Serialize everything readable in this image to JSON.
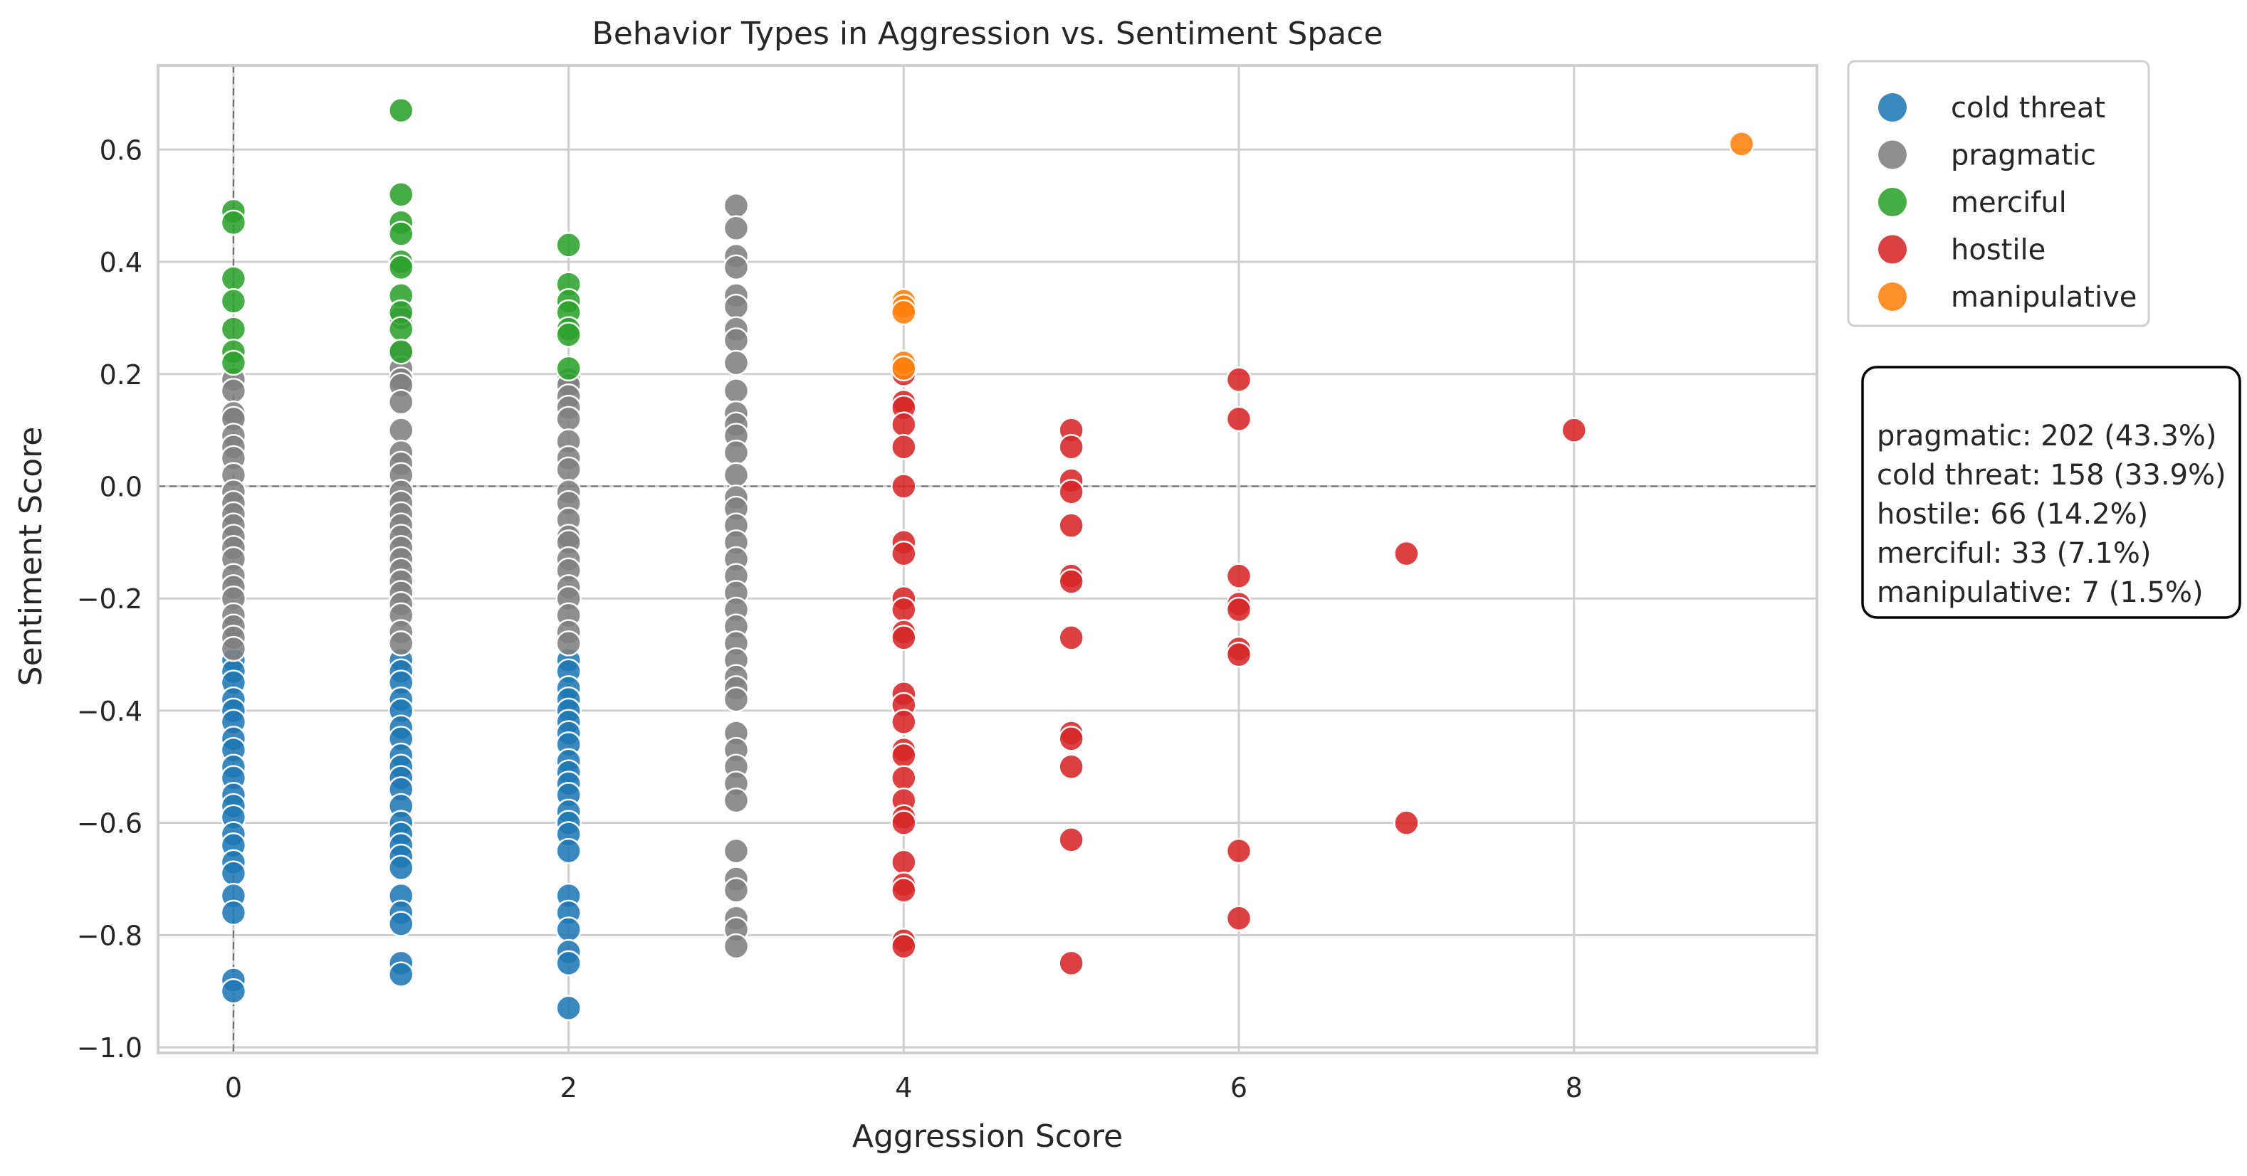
{
  "chart_data": {
    "type": "scatter",
    "title": "Behavior Types in Aggression vs. Sentiment Space",
    "xlabel": "Aggression Score",
    "ylabel": "Sentiment Score",
    "xlim": [
      -0.45,
      9.45
    ],
    "ylim": [
      -1.01,
      0.75
    ],
    "xticks": [
      0,
      2,
      4,
      6,
      8
    ],
    "yticks": [
      -1.0,
      -0.8,
      -0.6,
      -0.4,
      -0.2,
      0.0,
      0.2,
      0.4,
      0.6
    ],
    "ytick_labels": [
      "−1.0",
      "−0.8",
      "−0.6",
      "−0.4",
      "−0.2",
      "0.0",
      "0.2",
      "0.4",
      "0.6"
    ],
    "xtick_labels": [
      "0",
      "2",
      "4",
      "6",
      "8"
    ],
    "grid": true,
    "reference_lines": {
      "x": 0,
      "y": 0,
      "style": "dashed"
    },
    "legend_position": "outside-top-right",
    "series": [
      {
        "name": "cold threat",
        "color": "#1f77b4",
        "points": [
          [
            0,
            -0.31
          ],
          [
            0,
            -0.33
          ],
          [
            0,
            -0.35
          ],
          [
            0,
            -0.38
          ],
          [
            0,
            -0.4
          ],
          [
            0,
            -0.42
          ],
          [
            0,
            -0.45
          ],
          [
            0,
            -0.47
          ],
          [
            0,
            -0.5
          ],
          [
            0,
            -0.52
          ],
          [
            0,
            -0.55
          ],
          [
            0,
            -0.57
          ],
          [
            0,
            -0.59
          ],
          [
            0,
            -0.62
          ],
          [
            0,
            -0.64
          ],
          [
            0,
            -0.67
          ],
          [
            0,
            -0.69
          ],
          [
            0,
            -0.73
          ],
          [
            0,
            -0.76
          ],
          [
            0,
            -0.88
          ],
          [
            0,
            -0.9
          ],
          [
            1,
            -0.31
          ],
          [
            1,
            -0.33
          ],
          [
            1,
            -0.35
          ],
          [
            1,
            -0.38
          ],
          [
            1,
            -0.4
          ],
          [
            1,
            -0.43
          ],
          [
            1,
            -0.45
          ],
          [
            1,
            -0.48
          ],
          [
            1,
            -0.5
          ],
          [
            1,
            -0.52
          ],
          [
            1,
            -0.54
          ],
          [
            1,
            -0.57
          ],
          [
            1,
            -0.6
          ],
          [
            1,
            -0.62
          ],
          [
            1,
            -0.64
          ],
          [
            1,
            -0.66
          ],
          [
            1,
            -0.68
          ],
          [
            1,
            -0.73
          ],
          [
            1,
            -0.76
          ],
          [
            1,
            -0.78
          ],
          [
            1,
            -0.85
          ],
          [
            1,
            -0.87
          ],
          [
            2,
            -0.31
          ],
          [
            2,
            -0.33
          ],
          [
            2,
            -0.36
          ],
          [
            2,
            -0.38
          ],
          [
            2,
            -0.4
          ],
          [
            2,
            -0.42
          ],
          [
            2,
            -0.44
          ],
          [
            2,
            -0.46
          ],
          [
            2,
            -0.49
          ],
          [
            2,
            -0.51
          ],
          [
            2,
            -0.53
          ],
          [
            2,
            -0.55
          ],
          [
            2,
            -0.58
          ],
          [
            2,
            -0.6
          ],
          [
            2,
            -0.62
          ],
          [
            2,
            -0.65
          ],
          [
            2,
            -0.73
          ],
          [
            2,
            -0.76
          ],
          [
            2,
            -0.79
          ],
          [
            2,
            -0.83
          ],
          [
            2,
            -0.85
          ],
          [
            2,
            -0.93
          ]
        ]
      },
      {
        "name": "pragmatic",
        "color": "#7f7f7f",
        "points": [
          [
            0,
            0.19
          ],
          [
            0,
            0.17
          ],
          [
            0,
            0.13
          ],
          [
            0,
            0.12
          ],
          [
            0,
            0.09
          ],
          [
            0,
            0.07
          ],
          [
            0,
            0.05
          ],
          [
            0,
            0.02
          ],
          [
            0,
            -0.01
          ],
          [
            0,
            -0.03
          ],
          [
            0,
            -0.05
          ],
          [
            0,
            -0.07
          ],
          [
            0,
            -0.09
          ],
          [
            0,
            -0.11
          ],
          [
            0,
            -0.13
          ],
          [
            0,
            -0.16
          ],
          [
            0,
            -0.18
          ],
          [
            0,
            -0.2
          ],
          [
            0,
            -0.23
          ],
          [
            0,
            -0.25
          ],
          [
            0,
            -0.27
          ],
          [
            0,
            -0.29
          ],
          [
            1,
            0.3
          ],
          [
            1,
            0.24
          ],
          [
            1,
            0.21
          ],
          [
            1,
            0.19
          ],
          [
            1,
            0.18
          ],
          [
            1,
            0.15
          ],
          [
            1,
            0.1
          ],
          [
            1,
            0.06
          ],
          [
            1,
            0.04
          ],
          [
            1,
            0.02
          ],
          [
            1,
            -0.01
          ],
          [
            1,
            -0.03
          ],
          [
            1,
            -0.05
          ],
          [
            1,
            -0.07
          ],
          [
            1,
            -0.09
          ],
          [
            1,
            -0.11
          ],
          [
            1,
            -0.13
          ],
          [
            1,
            -0.15
          ],
          [
            1,
            -0.17
          ],
          [
            1,
            -0.19
          ],
          [
            1,
            -0.21
          ],
          [
            1,
            -0.23
          ],
          [
            1,
            -0.26
          ],
          [
            1,
            -0.28
          ],
          [
            2,
            0.19
          ],
          [
            2,
            0.18
          ],
          [
            2,
            0.16
          ],
          [
            2,
            0.14
          ],
          [
            2,
            0.12
          ],
          [
            2,
            0.08
          ],
          [
            2,
            0.05
          ],
          [
            2,
            0.03
          ],
          [
            2,
            -0.01
          ],
          [
            2,
            -0.03
          ],
          [
            2,
            -0.06
          ],
          [
            2,
            -0.09
          ],
          [
            2,
            -0.1
          ],
          [
            2,
            -0.13
          ],
          [
            2,
            -0.15
          ],
          [
            2,
            -0.18
          ],
          [
            2,
            -0.2
          ],
          [
            2,
            -0.23
          ],
          [
            2,
            -0.26
          ],
          [
            2,
            -0.28
          ],
          [
            3,
            0.5
          ],
          [
            3,
            0.46
          ],
          [
            3,
            0.41
          ],
          [
            3,
            0.39
          ],
          [
            3,
            0.34
          ],
          [
            3,
            0.32
          ],
          [
            3,
            0.28
          ],
          [
            3,
            0.26
          ],
          [
            3,
            0.22
          ],
          [
            3,
            0.17
          ],
          [
            3,
            0.13
          ],
          [
            3,
            0.11
          ],
          [
            3,
            0.09
          ],
          [
            3,
            0.06
          ],
          [
            3,
            0.02
          ],
          [
            3,
            -0.02
          ],
          [
            3,
            -0.04
          ],
          [
            3,
            -0.07
          ],
          [
            3,
            -0.1
          ],
          [
            3,
            -0.13
          ],
          [
            3,
            -0.16
          ],
          [
            3,
            -0.19
          ],
          [
            3,
            -0.22
          ],
          [
            3,
            -0.25
          ],
          [
            3,
            -0.28
          ],
          [
            3,
            -0.31
          ],
          [
            3,
            -0.34
          ],
          [
            3,
            -0.36
          ],
          [
            3,
            -0.38
          ],
          [
            3,
            -0.44
          ],
          [
            3,
            -0.47
          ],
          [
            3,
            -0.5
          ],
          [
            3,
            -0.53
          ],
          [
            3,
            -0.56
          ],
          [
            3,
            -0.65
          ],
          [
            3,
            -0.7
          ],
          [
            3,
            -0.72
          ],
          [
            3,
            -0.77
          ],
          [
            3,
            -0.79
          ],
          [
            3,
            -0.82
          ]
        ]
      },
      {
        "name": "merciful",
        "color": "#2ca02c",
        "points": [
          [
            0,
            0.49
          ],
          [
            0,
            0.47
          ],
          [
            0,
            0.37
          ],
          [
            0,
            0.33
          ],
          [
            0,
            0.28
          ],
          [
            0,
            0.24
          ],
          [
            0,
            0.22
          ],
          [
            1,
            0.67
          ],
          [
            1,
            0.52
          ],
          [
            1,
            0.47
          ],
          [
            1,
            0.45
          ],
          [
            1,
            0.4
          ],
          [
            1,
            0.39
          ],
          [
            1,
            0.34
          ],
          [
            1,
            0.31
          ],
          [
            1,
            0.28
          ],
          [
            1,
            0.24
          ],
          [
            2,
            0.43
          ],
          [
            2,
            0.36
          ],
          [
            2,
            0.33
          ],
          [
            2,
            0.31
          ],
          [
            2,
            0.28
          ],
          [
            2,
            0.27
          ],
          [
            2,
            0.21
          ]
        ]
      },
      {
        "name": "hostile",
        "color": "#d62728",
        "points": [
          [
            4,
            0.2
          ],
          [
            4,
            0.15
          ],
          [
            4,
            0.14
          ],
          [
            4,
            0.11
          ],
          [
            4,
            0.07
          ],
          [
            4,
            0.0
          ],
          [
            4,
            -0.1
          ],
          [
            4,
            -0.12
          ],
          [
            4,
            -0.2
          ],
          [
            4,
            -0.22
          ],
          [
            4,
            -0.26
          ],
          [
            4,
            -0.27
          ],
          [
            4,
            -0.37
          ],
          [
            4,
            -0.39
          ],
          [
            4,
            -0.42
          ],
          [
            4,
            -0.47
          ],
          [
            4,
            -0.48
          ],
          [
            4,
            -0.52
          ],
          [
            4,
            -0.56
          ],
          [
            4,
            -0.59
          ],
          [
            4,
            -0.6
          ],
          [
            4,
            -0.67
          ],
          [
            4,
            -0.71
          ],
          [
            4,
            -0.72
          ],
          [
            4,
            -0.81
          ],
          [
            4,
            -0.82
          ],
          [
            5,
            0.1
          ],
          [
            5,
            0.07
          ],
          [
            5,
            0.01
          ],
          [
            5,
            -0.01
          ],
          [
            5,
            -0.07
          ],
          [
            5,
            -0.16
          ],
          [
            5,
            -0.17
          ],
          [
            5,
            -0.27
          ],
          [
            5,
            -0.44
          ],
          [
            5,
            -0.45
          ],
          [
            5,
            -0.5
          ],
          [
            5,
            -0.63
          ],
          [
            5,
            -0.85
          ],
          [
            6,
            0.19
          ],
          [
            6,
            0.12
          ],
          [
            6,
            -0.16
          ],
          [
            6,
            -0.21
          ],
          [
            6,
            -0.22
          ],
          [
            6,
            -0.29
          ],
          [
            6,
            -0.3
          ],
          [
            6,
            -0.65
          ],
          [
            6,
            -0.77
          ],
          [
            7,
            -0.12
          ],
          [
            7,
            -0.6
          ],
          [
            8,
            0.1
          ]
        ]
      },
      {
        "name": "manipulative",
        "color": "#ff7f0e",
        "points": [
          [
            4,
            0.33
          ],
          [
            4,
            0.32
          ],
          [
            4,
            0.31
          ],
          [
            4,
            0.22
          ],
          [
            4,
            0.21
          ],
          [
            9,
            0.61
          ]
        ]
      }
    ],
    "legend": [
      "cold threat",
      "pragmatic",
      "merciful",
      "hostile",
      "manipulative"
    ],
    "summary_box": [
      "pragmatic: 202 (43.3%)",
      "cold threat: 158 (33.9%)",
      "hostile: 66 (14.2%)",
      "merciful: 33 (7.1%)",
      "manipulative: 7 (1.5%)"
    ]
  }
}
